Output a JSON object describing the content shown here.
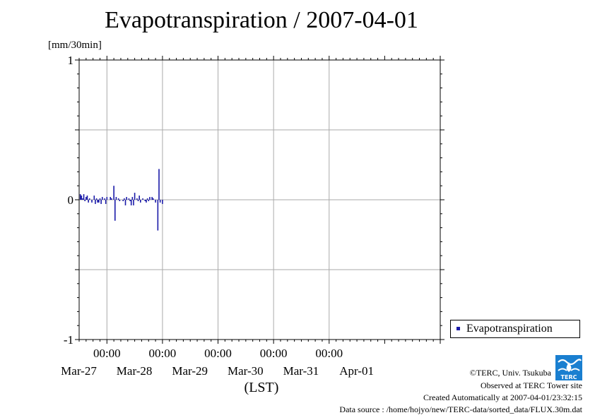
{
  "title": "Evapotranspiration / 2007-04-01",
  "unit": "[mm/30min]",
  "legend": {
    "label": "Evapotranspiration",
    "color": "#1a1aa8"
  },
  "footer": {
    "copyright": "©TERC, Univ. Tsukuba",
    "observed": "Observed at TERC Tower site",
    "created": "Created Automatically at 2007-04-01/23:32:15",
    "source": "Data source : /home/hojyo/new/TERC-data/sorted_data/FLUX.30m.dat"
  },
  "logo": {
    "text": "TERC",
    "color": "#1a7fd0"
  },
  "chart_data": {
    "type": "bar",
    "xlabel": "(LST)",
    "ylabel": "[mm/30min]",
    "ylim": [
      -1,
      1
    ],
    "yticks": [
      -1,
      0,
      1
    ],
    "y_gridlines": [
      -0.5,
      0.5
    ],
    "xlim_days": [
      "Mar-26 12:00",
      "Apr-01 24:00"
    ],
    "x_time_ticks": [
      "00:00",
      "00:00",
      "00:00",
      "00:00",
      "00:00"
    ],
    "x_date_labels": [
      "Mar-27",
      "Mar-28",
      "Mar-29",
      "Mar-30",
      "Mar-31",
      "Apr-01"
    ],
    "grid": true,
    "legend_position": "right",
    "series": [
      {
        "name": "Evapotranspiration",
        "color": "#1a1aa8",
        "start": "Mar-26 12:30",
        "interval_hours": 0.5,
        "values": [
          0.04,
          0.03,
          0.01,
          0.04,
          -0.01,
          0.02,
          0.03,
          -0.02,
          0.01,
          0.0,
          -0.02,
          0.0,
          0.03,
          -0.03,
          0.01,
          -0.02,
          -0.02,
          0.01,
          -0.03,
          0.02,
          0.0,
          0.01,
          -0.03,
          0.02,
          0.0,
          0.0,
          0.02,
          0.01,
          0.0,
          0.1,
          -0.15,
          0.02,
          0.0,
          0.01,
          -0.01,
          0.0,
          0.0,
          -0.01,
          0.01,
          -0.04,
          0.02,
          0.0,
          0.01,
          -0.01,
          -0.04,
          0.02,
          -0.04,
          0.05,
          0.0,
          0.01,
          -0.01,
          0.03,
          -0.02,
          0.0,
          0.01,
          0.0,
          -0.01,
          -0.02,
          0.01,
          -0.01,
          0.02,
          0.0,
          0.02,
          0.01,
          0.0,
          -0.02,
          0.0,
          -0.22,
          0.22,
          -0.02,
          0.0,
          -0.03
        ]
      }
    ]
  }
}
